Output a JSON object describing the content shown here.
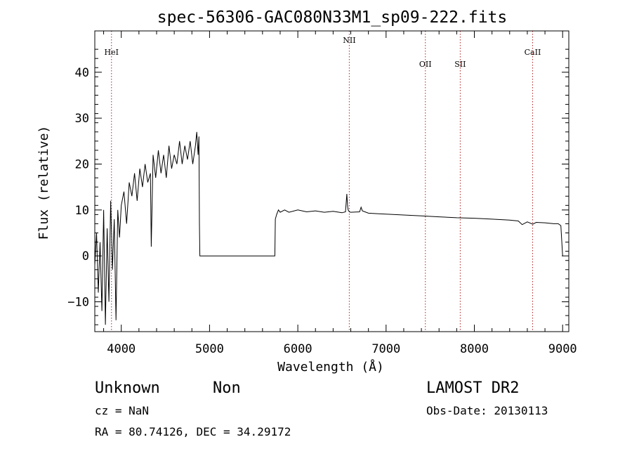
{
  "chart_data": {
    "type": "line",
    "title": "spec-56306-GAC080N33M1_sp09-222.fits",
    "xlabel": "Wavelength (Å)",
    "ylabel": "Flux (relative)",
    "xlim": [
      3700,
      9070
    ],
    "ylim": [
      -16.5,
      49
    ],
    "xticks": [
      4000,
      5000,
      6000,
      7000,
      8000,
      9000
    ],
    "yticks": [
      -10,
      0,
      10,
      20,
      30,
      40
    ],
    "grid": false,
    "series": [
      {
        "x": [
          3700,
          3720,
          3740,
          3760,
          3780,
          3800,
          3820,
          3840,
          3860,
          3880,
          3900,
          3920,
          3940,
          3960,
          3980,
          4000,
          4030,
          4060,
          4090,
          4120,
          4150,
          4180,
          4210,
          4240,
          4270,
          4300,
          4330,
          4340,
          4360,
          4390,
          4420,
          4450,
          4480,
          4510,
          4540,
          4570,
          4600,
          4630,
          4660,
          4690,
          4720,
          4750,
          4780,
          4810,
          4840,
          4855,
          4870,
          4880,
          4885,
          4890,
          4900,
          5000,
          5200,
          5400,
          5600,
          5740,
          5745,
          5760,
          5780,
          5800,
          5850,
          5900,
          6000,
          6100,
          6200,
          6300,
          6400,
          6500,
          6540,
          6555,
          6563,
          6570,
          6584,
          6600,
          6700,
          6717,
          6731,
          6800,
          6900,
          7000,
          7200,
          7400,
          7600,
          7800,
          8000,
          8200,
          8400,
          8498,
          8542,
          8600,
          8662,
          8700,
          8800,
          8900,
          8950,
          8980,
          9000
        ],
        "y": [
          -2,
          5,
          -8,
          3,
          -12,
          10,
          -15,
          6,
          -10,
          12,
          -3,
          8,
          -14,
          10,
          4,
          11,
          14,
          7,
          16,
          13,
          18,
          12,
          19,
          15,
          20,
          16,
          18,
          2,
          22,
          17,
          23,
          18,
          22,
          17,
          24,
          19,
          22,
          20,
          25,
          20,
          24,
          21,
          25,
          20,
          24,
          27,
          22,
          26,
          7,
          0,
          0,
          0,
          0,
          0,
          0,
          0,
          8,
          9,
          10,
          9.5,
          10,
          9.5,
          10,
          9.6,
          9.8,
          9.5,
          9.7,
          9.4,
          9.6,
          13.5,
          11,
          10,
          9.6,
          9.5,
          9.6,
          10.6,
          9.8,
          9.3,
          9.2,
          9.1,
          8.9,
          8.7,
          8.5,
          8.3,
          8.2,
          8.0,
          7.8,
          7.6,
          6.8,
          7.4,
          6.9,
          7.3,
          7.2,
          7.0,
          7.0,
          6.6,
          0
        ]
      }
    ],
    "lines": [
      {
        "label": "HeI",
        "x": 3889
      },
      {
        "label": "NII",
        "x": 6583
      },
      {
        "label": "OII",
        "x": 7445
      },
      {
        "label": "SII",
        "x": 7840
      },
      {
        "label": "CaII",
        "x": 8660
      }
    ]
  },
  "info": {
    "class": "Unknown",
    "subclass": "Non",
    "cz": "cz = NaN",
    "coords": "RA =  80.74126, DEC =  34.29172",
    "survey": "LAMOST DR2",
    "obsdate": "Obs-Date: 20130113"
  }
}
